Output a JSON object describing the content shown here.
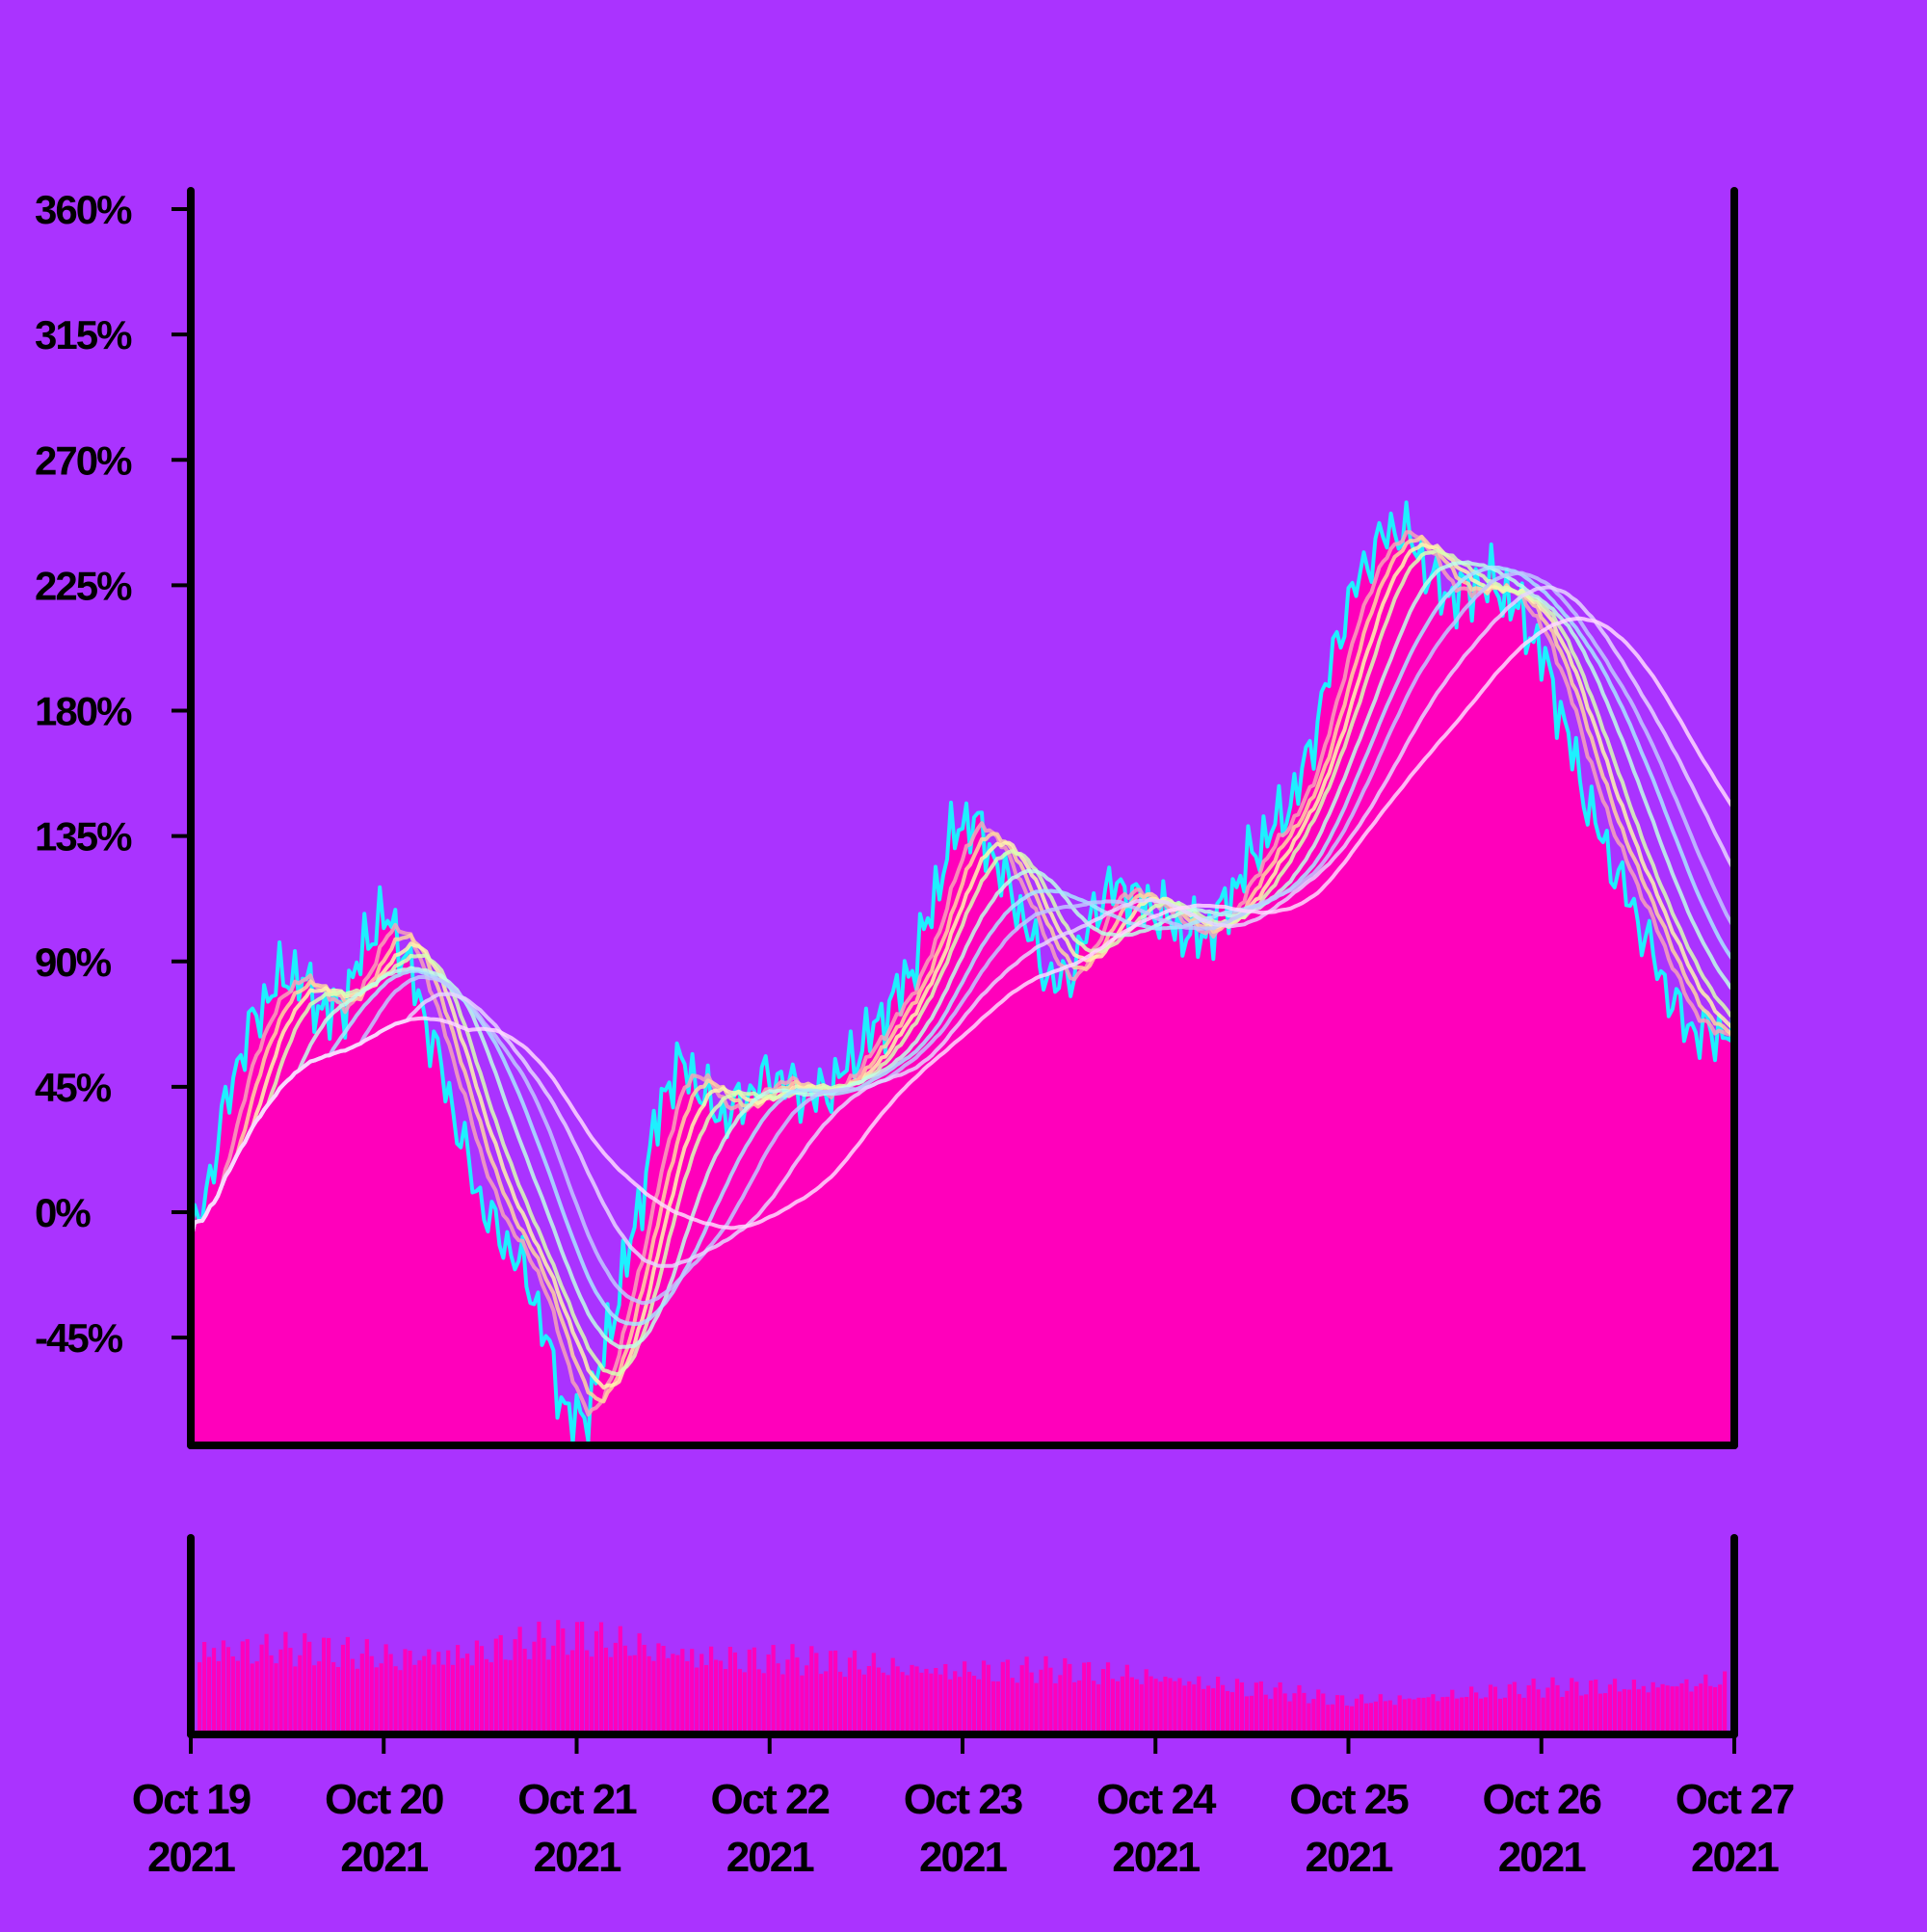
{
  "colors": {
    "background": "#AA33FF",
    "area_fill": "#FF00BB",
    "volume_fill": "#FF00BB",
    "axis": "#000000",
    "price_line": "#1EF0FF",
    "ma_colors": [
      "#F7A3B8",
      "#FFD6A0",
      "#FFF7AD",
      "#D9FFB5",
      "#BFFFE8",
      "#A8E8FF",
      "#C0C8FF",
      "#E6D6FF",
      "#FFD9FF"
    ]
  },
  "chart_data": {
    "type": "line",
    "y_axis": {
      "unit": "%",
      "ylim": [
        -90,
        360
      ],
      "ticks": [
        360,
        315,
        270,
        225,
        180,
        135,
        90,
        45,
        0,
        -45
      ],
      "tick_labels": [
        "360%",
        "315%",
        "270%",
        "225%",
        "180%",
        "135%",
        "90%",
        "45%",
        "0%",
        "-45%"
      ]
    },
    "x_axis": {
      "range": [
        "2021-10-19",
        "2021-10-27"
      ],
      "ticks": [
        {
          "date": "2021-10-19",
          "line1": "Oct 19",
          "line2": "2021"
        },
        {
          "date": "2021-10-20",
          "line1": "Oct 20",
          "line2": "2021"
        },
        {
          "date": "2021-10-21",
          "line1": "Oct 21",
          "line2": "2021"
        },
        {
          "date": "2021-10-22",
          "line1": "Oct 22",
          "line2": "2021"
        },
        {
          "date": "2021-10-23",
          "line1": "Oct 23",
          "line2": "2021"
        },
        {
          "date": "2021-10-24",
          "line1": "Oct 24",
          "line2": "2021"
        },
        {
          "date": "2021-10-25",
          "line1": "Oct 25",
          "line2": "2021"
        },
        {
          "date": "2021-10-26",
          "line1": "Oct 26",
          "line2": "2021"
        },
        {
          "date": "2021-10-27",
          "line1": "Oct 27",
          "line2": "2021"
        }
      ]
    },
    "price_series": {
      "x": [
        "2021-10-19 00:00",
        "2021-10-19 06:00",
        "2021-10-19 12:00",
        "2021-10-19 18:00",
        "2021-10-20 00:00",
        "2021-10-20 06:00",
        "2021-10-20 12:00",
        "2021-10-20 18:00",
        "2021-10-21 00:00",
        "2021-10-21 06:00",
        "2021-10-21 12:00",
        "2021-10-21 18:00",
        "2021-10-22 00:00",
        "2021-10-22 06:00",
        "2021-10-22 12:00",
        "2021-10-22 18:00",
        "2021-10-23 00:00",
        "2021-10-23 06:00",
        "2021-10-23 12:00",
        "2021-10-23 18:00",
        "2021-10-24 00:00",
        "2021-10-24 06:00",
        "2021-10-24 12:00",
        "2021-10-24 18:00",
        "2021-10-25 00:00",
        "2021-10-25 06:00",
        "2021-10-25 12:00",
        "2021-10-25 18:00",
        "2021-10-26 00:00",
        "2021-10-26 06:00",
        "2021-10-26 12:00",
        "2021-10-26 18:00",
        "2021-10-27 00:00"
      ],
      "values": [
        -10,
        55,
        85,
        72,
        105,
        62,
        5,
        -25,
        -75,
        -20,
        50,
        35,
        48,
        42,
        62,
        90,
        140,
        115,
        82,
        115,
        108,
        100,
        128,
        155,
        218,
        245,
        222,
        225,
        200,
        145,
        105,
        68,
        65
      ]
    },
    "moving_averages": [
      {
        "window": 2
      },
      {
        "window": 3
      },
      {
        "window": 4
      },
      {
        "window": 5
      },
      {
        "window": 7
      },
      {
        "window": 9
      },
      {
        "window": 11
      },
      {
        "window": 14
      },
      {
        "window": 18
      }
    ],
    "volume": {
      "x": [
        "2021-10-19",
        "2021-10-20",
        "2021-10-21",
        "2021-10-22",
        "2021-10-23",
        "2021-10-24",
        "2021-10-25",
        "2021-10-26",
        "2021-10-27"
      ],
      "relative_values": [
        0.75,
        0.65,
        0.8,
        0.62,
        0.55,
        0.5,
        0.28,
        0.38,
        0.45
      ]
    }
  }
}
